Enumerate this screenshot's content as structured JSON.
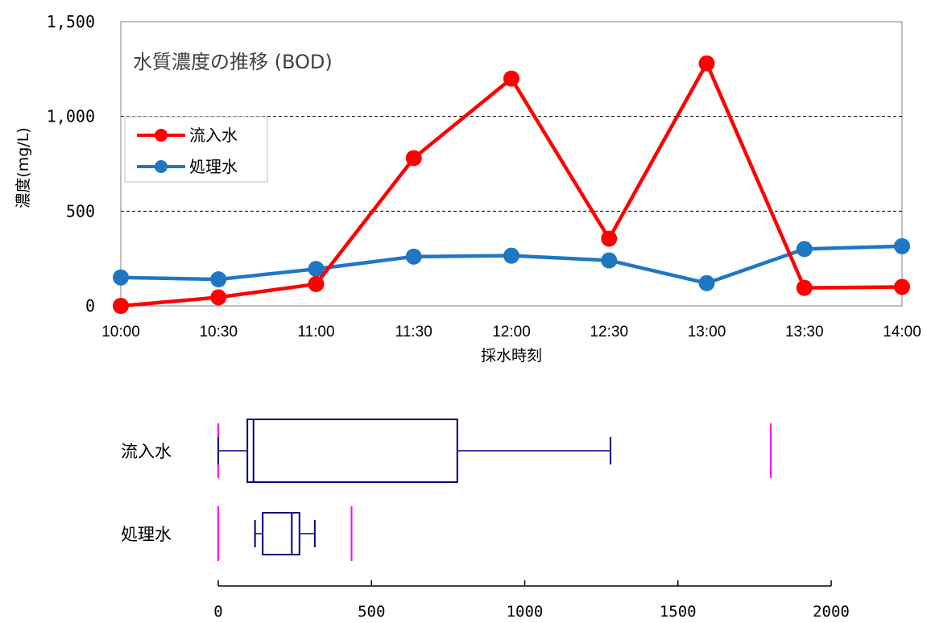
{
  "chart_data": [
    {
      "type": "line",
      "title": "水質濃度の推移 (BOD)",
      "xlabel": "採水時刻",
      "ylabel": "濃度(mg/L)",
      "ylim": [
        0,
        1500
      ],
      "y_ticks": [
        "0",
        "500",
        "1,000",
        "1,500"
      ],
      "y_tick_values": [
        0,
        500,
        1000,
        1500
      ],
      "categories": [
        "10:00",
        "10:30",
        "11:00",
        "11:30",
        "12:00",
        "12:30",
        "13:00",
        "13:30",
        "14:00"
      ],
      "grid": "dashed horizontal at 500 and 1000",
      "legend": "top-left",
      "series": [
        {
          "name": "流入水",
          "color": "#ff0000",
          "values": [
            0,
            45,
            115,
            780,
            1200,
            355,
            1280,
            95,
            100
          ]
        },
        {
          "name": "処理水",
          "color": "#1f77c4",
          "values": [
            150,
            140,
            195,
            260,
            265,
            240,
            120,
            300,
            315
          ]
        }
      ]
    },
    {
      "type": "box",
      "xlim": [
        0,
        2000
      ],
      "x_ticks": [
        "0",
        "500",
        "1000",
        "1500",
        "2000"
      ],
      "x_tick_values": [
        0,
        500,
        1000,
        1500,
        2000
      ],
      "box_color": "#000080",
      "fence_color": "#ff00ff",
      "series": [
        {
          "name": "流入水",
          "min": 0,
          "q1": 95,
          "median": 115,
          "q3": 780,
          "max": 1280,
          "lower_fence": 0,
          "upper_fence": 1803
        },
        {
          "name": "処理水",
          "min": 120,
          "q1": 145,
          "median": 240,
          "q3": 265,
          "max": 315,
          "lower_fence": 0,
          "upper_fence": 435
        }
      ]
    }
  ]
}
